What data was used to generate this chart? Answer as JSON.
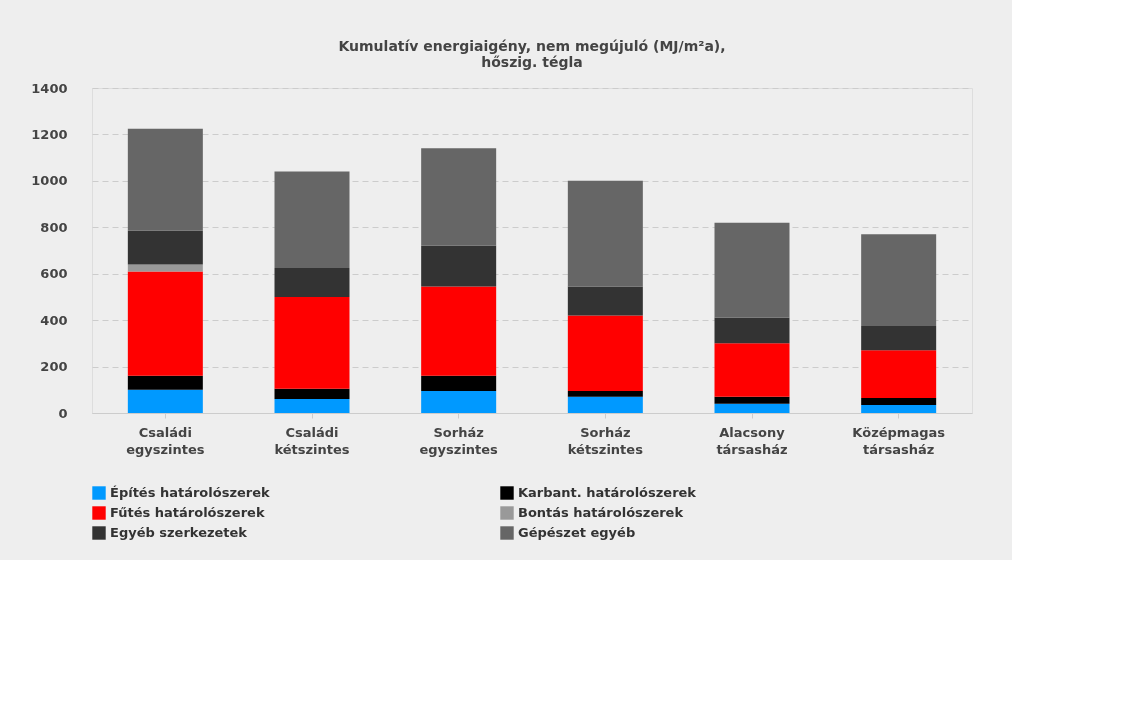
{
  "chart_data": {
    "type": "bar",
    "title": "Kumulatív energiaigény, nem megújuló (MJ/m²a),\nhőszig. tégla",
    "categories": [
      "Családi egyszintes",
      "Családi kétszintes",
      "Sorház egyszintes",
      "Sorház kétszintes",
      "Alacsony társasház",
      "Középmagas társasház"
    ],
    "stacked": true,
    "series": [
      {
        "name": "Építés határolószerek",
        "color": "#0099ff",
        "values": [
          100,
          60,
          95,
          70,
          40,
          35
        ]
      },
      {
        "name": "Karbant. határolószerek",
        "color": "#000000",
        "values": [
          60,
          45,
          65,
          25,
          30,
          30
        ]
      },
      {
        "name": "Fűtés határolószerek",
        "color": "#ff0000",
        "values": [
          450,
          395,
          385,
          325,
          230,
          205
        ]
      },
      {
        "name": "Bontás határolószerek",
        "color": "#999999",
        "values": [
          30,
          0,
          0,
          0,
          0,
          0
        ]
      },
      {
        "name": "Egyéb szerkezetek",
        "color": "#333333",
        "values": [
          145,
          125,
          175,
          125,
          110,
          105
        ]
      },
      {
        "name": "Gépészet egyéb",
        "color": "#666666",
        "values": [
          440,
          415,
          420,
          455,
          410,
          395
        ]
      }
    ],
    "ylim": [
      0,
      1400
    ],
    "yticks": [
      0,
      200,
      400,
      600,
      800,
      1000,
      1200,
      1400
    ],
    "grid": "y",
    "legend": "bottom"
  }
}
